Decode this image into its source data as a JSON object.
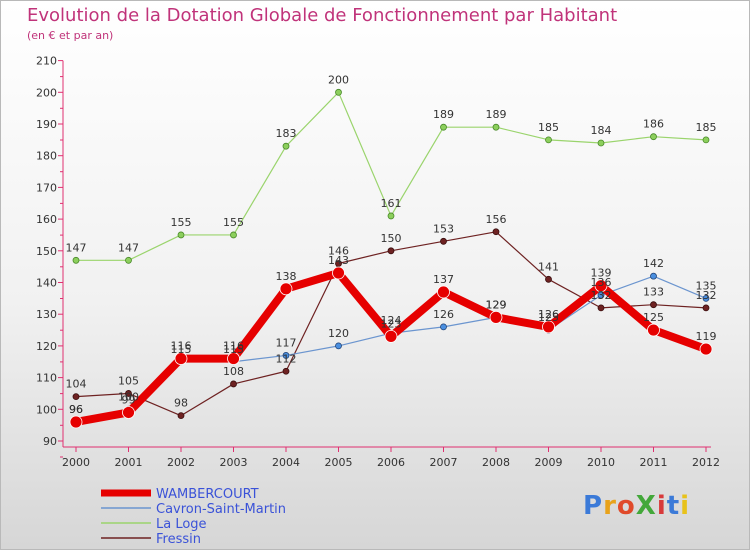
{
  "title": "Evolution de la Dotation Globale de Fonctionnement par Habitant",
  "subtitle": "(en € et par an)",
  "logo": {
    "text": "ProXiti",
    "letter_colors": [
      "#3b7ad8",
      "#e8a21a",
      "#e04a2a",
      "#43a83a",
      "#d83a3a",
      "#3b7ad8",
      "#e8c21a"
    ]
  },
  "chart_data": {
    "type": "line",
    "title": "Evolution de la Dotation Globale de Fonctionnement par Habitant",
    "subtitle": "(en € et par an)",
    "x": [
      "2000",
      "2001",
      "2002",
      "2003",
      "2004",
      "2005",
      "2006",
      "2007",
      "2008",
      "2009",
      "2010",
      "2011",
      "2012"
    ],
    "ylim": [
      90,
      210
    ],
    "yticks": [
      90,
      100,
      110,
      120,
      130,
      140,
      150,
      160,
      170,
      180,
      190,
      200,
      210
    ],
    "grid": false,
    "legend_position": "bottom-left",
    "series": [
      {
        "name": "WAMBERCOURT",
        "color": "#e60000",
        "values": [
          96,
          99,
          116,
          116,
          138,
          143,
          123,
          137,
          129,
          126,
          139,
          125,
          119
        ]
      },
      {
        "name": "Cavron-Saint-Martin",
        "color": "#5b8fd0",
        "values": [
          96,
          100,
          115,
          115,
          117,
          120,
          124,
          126,
          129,
          125,
          136,
          142,
          135
        ]
      },
      {
        "name": "La Loge",
        "color": "#9ad46c",
        "values": [
          147,
          147,
          155,
          155,
          183,
          200,
          161,
          189,
          189,
          185,
          184,
          186,
          185
        ]
      },
      {
        "name": "Fressin",
        "color": "#6e2222",
        "values": [
          104,
          105,
          98,
          108,
          112,
          146,
          150,
          153,
          156,
          141,
          132,
          133,
          132
        ]
      }
    ]
  }
}
